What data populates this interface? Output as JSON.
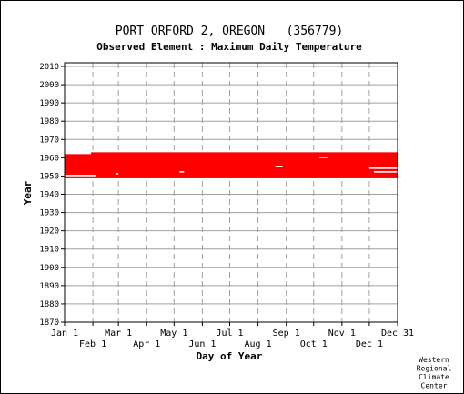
{
  "chart_data": {
    "type": "scatter",
    "title": "PORT ORFORD 2, OREGON   (356779)",
    "subtitle": "Observed Element : Maximum Daily Temperature",
    "xlabel": "Day of Year",
    "ylabel": "Year",
    "ylim": [
      1870,
      2012
    ],
    "xlim": [
      1,
      366
    ],
    "y_ticks": [
      1870,
      1880,
      1890,
      1900,
      1910,
      1920,
      1930,
      1940,
      1950,
      1960,
      1970,
      1980,
      1990,
      2000,
      2010
    ],
    "x_ticks_upper": [
      {
        "label": "Jan 1",
        "day": 1
      },
      {
        "label": "Mar 1",
        "day": 60
      },
      {
        "label": "May 1",
        "day": 121
      },
      {
        "label": "Jul 1",
        "day": 182
      },
      {
        "label": "Sep 1",
        "day": 244
      },
      {
        "label": "Nov 1",
        "day": 305
      },
      {
        "label": "Dec 31",
        "day": 366
      }
    ],
    "x_ticks_lower": [
      {
        "label": "Feb 1",
        "day": 32
      },
      {
        "label": "Apr 1",
        "day": 91
      },
      {
        "label": "Jun 1",
        "day": 152
      },
      {
        "label": "Aug 1",
        "day": 213
      },
      {
        "label": "Oct 1",
        "day": 274
      },
      {
        "label": "Dec 1",
        "day": 335
      }
    ],
    "grid": true,
    "series": [
      {
        "color": "#ff0000",
        "data_coverage": {
          "start_year": 1949,
          "end_year": 1962,
          "records": [
            {
              "year": 1949,
              "start_day": 1,
              "end_day": 366
            },
            {
              "year": 1950,
              "start_day": 1,
              "end_day": 366
            },
            {
              "year": 1951,
              "start_day": 1,
              "end_day": 366
            },
            {
              "year": 1952,
              "start_day": 1,
              "end_day": 366
            },
            {
              "year": 1953,
              "start_day": 1,
              "end_day": 366
            },
            {
              "year": 1954,
              "start_day": 1,
              "end_day": 366
            },
            {
              "year": 1955,
              "start_day": 1,
              "end_day": 366
            },
            {
              "year": 1956,
              "start_day": 1,
              "end_day": 366
            },
            {
              "year": 1957,
              "start_day": 1,
              "end_day": 366
            },
            {
              "year": 1958,
              "start_day": 1,
              "end_day": 366
            },
            {
              "year": 1959,
              "start_day": 1,
              "end_day": 366
            },
            {
              "year": 1960,
              "start_day": 1,
              "end_day": 366
            },
            {
              "year": 1961,
              "start_day": 1,
              "end_day": 366
            },
            {
              "year": 1962,
              "start_day": 30,
              "end_day": 366
            }
          ],
          "gaps": [
            {
              "year": 1950,
              "start_day": 1,
              "end_day": 36
            },
            {
              "year": 1951,
              "start_day": 57,
              "end_day": 60
            },
            {
              "year": 1952,
              "start_day": 127,
              "end_day": 132
            },
            {
              "year": 1955,
              "start_day": 232,
              "end_day": 240
            },
            {
              "year": 1954,
              "start_day": 335,
              "end_day": 366
            },
            {
              "year": 1952,
              "start_day": 340,
              "end_day": 366
            },
            {
              "year": 1960,
              "start_day": 280,
              "end_day": 290
            }
          ]
        }
      }
    ]
  },
  "credit": [
    "Western",
    "Regional",
    "Climate",
    "Center"
  ]
}
